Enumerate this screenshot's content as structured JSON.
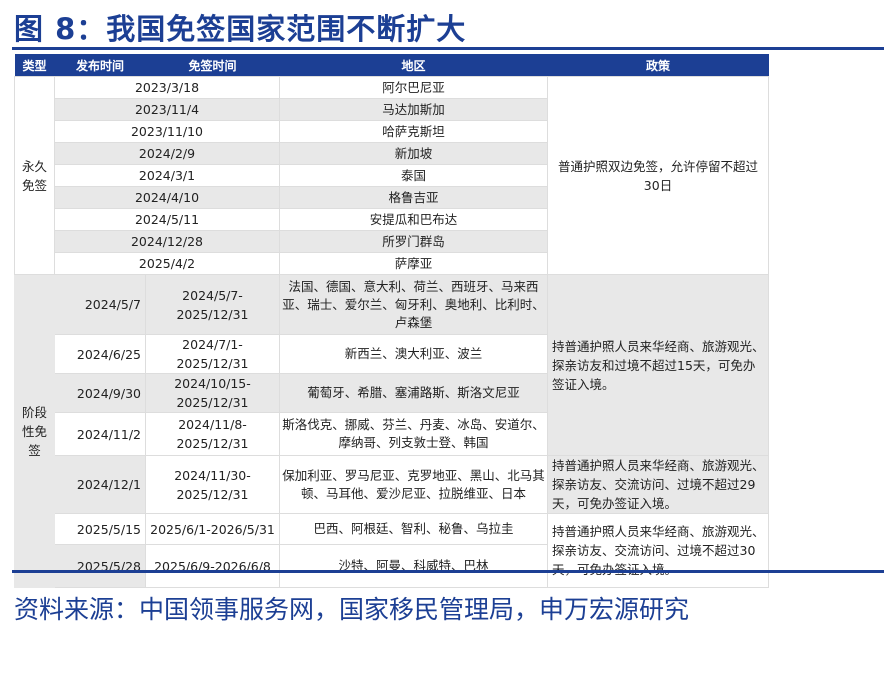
{
  "title": "图 8：我国免签国家范围不断扩大",
  "headers": [
    "类型",
    "发布时间",
    "免签时间",
    "地区",
    "政策"
  ],
  "permanent": {
    "type": "永久免签",
    "policy": "普通护照双边免签，允许停留不超过30日",
    "rows": [
      {
        "date": "2023/3/18",
        "region": "阿尔巴尼亚"
      },
      {
        "date": "2023/11/4",
        "region": "马达加斯加"
      },
      {
        "date": "2023/11/10",
        "region": "哈萨克斯坦"
      },
      {
        "date": "2024/2/9",
        "region": "新加坡"
      },
      {
        "date": "2024/3/1",
        "region": "泰国"
      },
      {
        "date": "2024/4/10",
        "region": "格鲁吉亚"
      },
      {
        "date": "2024/5/11",
        "region": "安提瓜和巴布达"
      },
      {
        "date": "2024/12/28",
        "region": "所罗门群岛"
      },
      {
        "date": "2025/4/2",
        "region": "萨摩亚"
      }
    ]
  },
  "phased": {
    "type": "阶段性免签",
    "policies": [
      "持普通护照人员来华经商、旅游观光、探亲访友和过境不超过15天，可免办签证入境。",
      "持普通护照人员来华经商、旅游观光、探亲访友、交流访问、过境不超过29天，可免办签证入境。",
      "持普通护照人员来华经商、旅游观光、探亲访友、交流访问、过境不超过30天，可免办签证入境。"
    ],
    "rows": [
      {
        "published": "2024/5/7",
        "period": "2024/5/7-2025/12/31",
        "region": "法国、德国、意大利、荷兰、西班牙、马来西亚、瑞士、爱尔兰、匈牙利、奥地利、比利时、卢森堡"
      },
      {
        "published": "2024/6/25",
        "period": "2024/7/1-2025/12/31",
        "region": "新西兰、澳大利亚、波兰"
      },
      {
        "published": "2024/9/30",
        "period": "2024/10/15-2025/12/31",
        "region": "葡萄牙、希腊、塞浦路斯、斯洛文尼亚"
      },
      {
        "published": "2024/11/2",
        "period": "2024/11/8-2025/12/31",
        "region": "斯洛伐克、挪威、芬兰、丹麦、冰岛、安道尔、摩纳哥、列支敦士登、韩国"
      },
      {
        "published": "2024/12/1",
        "period": "2024/11/30-2025/12/31",
        "region": "保加利亚、罗马尼亚、克罗地亚、黑山、北马其顿、马耳他、爱沙尼亚、拉脱维亚、日本"
      },
      {
        "published": "2025/5/15",
        "period": "2025/6/1-2026/5/31",
        "region": "巴西、阿根廷、智利、秘鲁、乌拉圭"
      },
      {
        "published": "2025/5/28",
        "period": "2025/6/9-2026/6/8",
        "region": "沙特、阿曼、科威特、巴林"
      }
    ]
  },
  "source": "资料来源：中国领事服务网，国家移民管理局，申万宏源研究"
}
